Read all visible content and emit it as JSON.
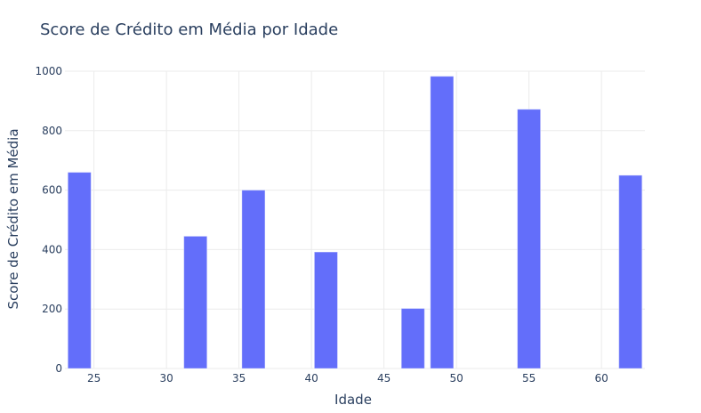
{
  "chart_data": {
    "type": "bar",
    "title": "Score de Crédito em Média por Idade",
    "xlabel": "Idade",
    "ylabel": "Score de Crédito em Média",
    "x": [
      24,
      32,
      36,
      41,
      47,
      49,
      55,
      62
    ],
    "values": [
      660,
      445,
      600,
      392,
      202,
      983,
      872,
      650
    ],
    "xlim": [
      23,
      63
    ],
    "ylim": [
      0,
      1000
    ],
    "xticks": [
      "25",
      "30",
      "35",
      "40",
      "45",
      "50",
      "55",
      "60"
    ],
    "yticks": [
      "0",
      "200",
      "400",
      "600",
      "800",
      "1000"
    ],
    "bar_color": "#636efa",
    "grid": true,
    "legend": false
  }
}
